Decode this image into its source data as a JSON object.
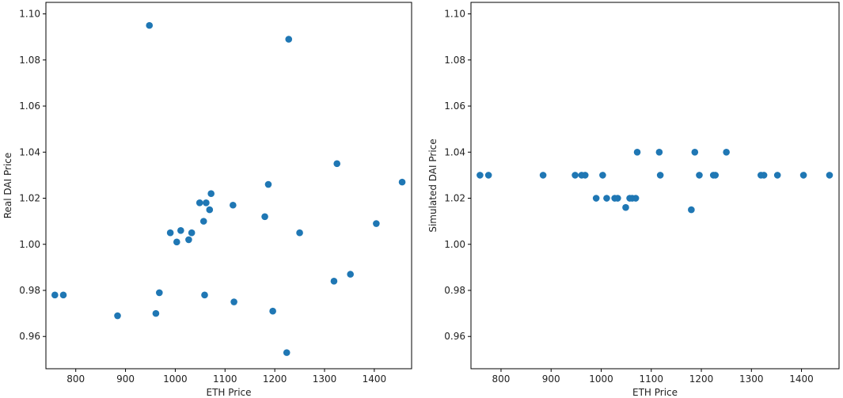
{
  "chart_data": [
    {
      "type": "scatter",
      "xlabel": "ETH Price",
      "ylabel": "Real DAI Price",
      "xlim": [
        740,
        1475
      ],
      "ylim": [
        0.946,
        1.105
      ],
      "xticks": [
        800,
        900,
        1000,
        1100,
        1200,
        1300,
        1400
      ],
      "yticks": [
        0.96,
        0.98,
        1.0,
        1.02,
        1.04,
        1.06,
        1.08,
        1.1
      ],
      "ytick_labels": [
        "0.96",
        "0.98",
        "1.00",
        "1.02",
        "1.04",
        "1.06",
        "1.08",
        "1.10"
      ],
      "grid": false,
      "color": "#1f77b4",
      "points": [
        {
          "x": 758,
          "y": 0.978
        },
        {
          "x": 775,
          "y": 0.978
        },
        {
          "x": 884,
          "y": 0.969
        },
        {
          "x": 948,
          "y": 1.095
        },
        {
          "x": 961,
          "y": 0.97
        },
        {
          "x": 968,
          "y": 0.979
        },
        {
          "x": 990,
          "y": 1.005
        },
        {
          "x": 1003,
          "y": 1.001
        },
        {
          "x": 1011,
          "y": 1.006
        },
        {
          "x": 1027,
          "y": 1.002
        },
        {
          "x": 1033,
          "y": 1.005
        },
        {
          "x": 1049,
          "y": 1.018
        },
        {
          "x": 1057,
          "y": 1.01
        },
        {
          "x": 1059,
          "y": 0.978
        },
        {
          "x": 1062,
          "y": 1.018
        },
        {
          "x": 1069,
          "y": 1.015
        },
        {
          "x": 1072,
          "y": 1.022
        },
        {
          "x": 1116,
          "y": 1.017
        },
        {
          "x": 1118,
          "y": 0.975
        },
        {
          "x": 1180,
          "y": 1.012
        },
        {
          "x": 1187,
          "y": 1.026
        },
        {
          "x": 1196,
          "y": 0.971
        },
        {
          "x": 1224,
          "y": 0.953
        },
        {
          "x": 1228,
          "y": 1.089
        },
        {
          "x": 1250,
          "y": 1.005
        },
        {
          "x": 1319,
          "y": 0.984
        },
        {
          "x": 1325,
          "y": 1.035
        },
        {
          "x": 1352,
          "y": 0.987
        },
        {
          "x": 1404,
          "y": 1.009
        },
        {
          "x": 1456,
          "y": 1.027
        }
      ]
    },
    {
      "type": "scatter",
      "xlabel": "ETH Price",
      "ylabel": "Simulated DAI Price",
      "xlim": [
        740,
        1475
      ],
      "ylim": [
        0.946,
        1.105
      ],
      "xticks": [
        800,
        900,
        1000,
        1100,
        1200,
        1300,
        1400
      ],
      "yticks": [
        0.96,
        0.98,
        1.0,
        1.02,
        1.04,
        1.06,
        1.08,
        1.1
      ],
      "ytick_labels": [
        "0.96",
        "0.98",
        "1.00",
        "1.02",
        "1.04",
        "1.06",
        "1.08",
        "1.10"
      ],
      "grid": false,
      "color": "#1f77b4",
      "points": [
        {
          "x": 758,
          "y": 1.03
        },
        {
          "x": 775,
          "y": 1.03
        },
        {
          "x": 884,
          "y": 1.03
        },
        {
          "x": 948,
          "y": 1.03
        },
        {
          "x": 961,
          "y": 1.03
        },
        {
          "x": 968,
          "y": 1.03
        },
        {
          "x": 990,
          "y": 1.02
        },
        {
          "x": 1003,
          "y": 1.03
        },
        {
          "x": 1011,
          "y": 1.02
        },
        {
          "x": 1027,
          "y": 1.02
        },
        {
          "x": 1033,
          "y": 1.02
        },
        {
          "x": 1049,
          "y": 1.016
        },
        {
          "x": 1057,
          "y": 1.02
        },
        {
          "x": 1062,
          "y": 1.02
        },
        {
          "x": 1069,
          "y": 1.02
        },
        {
          "x": 1072,
          "y": 1.04
        },
        {
          "x": 1116,
          "y": 1.04
        },
        {
          "x": 1118,
          "y": 1.03
        },
        {
          "x": 1180,
          "y": 1.015
        },
        {
          "x": 1187,
          "y": 1.04
        },
        {
          "x": 1196,
          "y": 1.03
        },
        {
          "x": 1224,
          "y": 1.03
        },
        {
          "x": 1228,
          "y": 1.03
        },
        {
          "x": 1250,
          "y": 1.04
        },
        {
          "x": 1319,
          "y": 1.03
        },
        {
          "x": 1325,
          "y": 1.03
        },
        {
          "x": 1352,
          "y": 1.03
        },
        {
          "x": 1404,
          "y": 1.03
        },
        {
          "x": 1456,
          "y": 1.03
        }
      ]
    }
  ]
}
